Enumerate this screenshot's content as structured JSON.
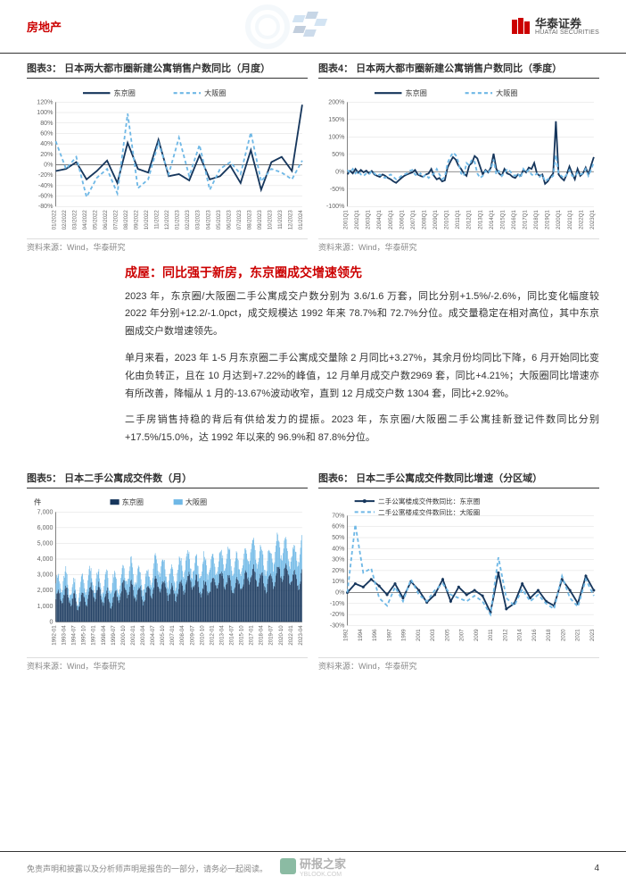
{
  "header": {
    "category": "房地产",
    "brand_cn": "华泰证券",
    "brand_en": "HUATAI SECURITIES"
  },
  "chart3": {
    "type": "line",
    "title": "图表3： 日本两大都市圈新建公寓销售户数同比（月度）",
    "source": "资料来源：Wind，华泰研究",
    "legend": [
      "东京圈",
      "大阪圈"
    ],
    "colors": {
      "s1": "#16365c",
      "s2": "#6fb8e6",
      "grid": "#dddddd",
      "axis": "#666666",
      "bg": "#ffffff"
    },
    "ylim": [
      -80,
      120
    ],
    "ytick_step": 20,
    "x_labels": [
      "01/2022",
      "02/2022",
      "03/2022",
      "04/2022",
      "05/2022",
      "06/2022",
      "07/2022",
      "08/2022",
      "09/2022",
      "10/2022",
      "11/2022",
      "12/2022",
      "01/2023",
      "02/2023",
      "03/2023",
      "04/2023",
      "05/2023",
      "06/2023",
      "07/2023",
      "08/2023",
      "09/2023",
      "10/2023",
      "11/2023",
      "12/2023",
      "01/2024"
    ],
    "s1_values": [
      -12,
      -8,
      5,
      -28,
      -12,
      8,
      -35,
      42,
      -8,
      -15,
      48,
      -22,
      -18,
      -30,
      18,
      -28,
      -22,
      -2,
      -35,
      28,
      -48,
      5,
      15,
      -12,
      115
    ],
    "s2_values": [
      45,
      -8,
      15,
      -62,
      -25,
      -8,
      -55,
      98,
      -45,
      -28,
      42,
      -18,
      52,
      -22,
      38,
      -48,
      -8,
      5,
      -18,
      62,
      -32,
      -8,
      -15,
      -28,
      8
    ]
  },
  "chart4": {
    "type": "line",
    "title": "图表4： 日本两大都市圈新建公寓销售户数同比（季度）",
    "source": "资料来源：Wind，华泰研究",
    "legend": [
      "东京圈",
      "大阪圈"
    ],
    "colors": {
      "s1": "#16365c",
      "s2": "#6fb8e6"
    },
    "ylim": [
      -100,
      200
    ],
    "ytick_step": 50,
    "x_labels": [
      "2001Q1",
      "2002Q1",
      "2003Q1",
      "2004Q1",
      "2005Q1",
      "2006Q1",
      "2007Q1",
      "2008Q1",
      "2009Q1",
      "2010Q1",
      "2011Q1",
      "2012Q1",
      "2013Q1",
      "2014Q1",
      "2015Q1",
      "2016Q1",
      "2017Q1",
      "2018Q1",
      "2019Q1",
      "2020Q1",
      "2021Q1",
      "2022Q1",
      "2023Q1"
    ],
    "s1_dense": [
      -8,
      2,
      -5,
      8,
      -3,
      5,
      -2,
      3,
      -5,
      2,
      -8,
      -12,
      -15,
      -8,
      -12,
      -18,
      -22,
      -28,
      -32,
      -25,
      -18,
      -12,
      -8,
      -5,
      -2,
      5,
      -8,
      -12,
      -15,
      -8,
      -5,
      8,
      -12,
      -22,
      -18,
      -28,
      -25,
      12,
      28,
      42,
      35,
      18,
      8,
      -5,
      -12,
      18,
      25,
      45,
      38,
      15,
      -8,
      5,
      -2,
      12,
      52,
      8,
      -5,
      -12,
      8,
      -5,
      -8,
      -15,
      -18,
      -8,
      -12,
      5,
      -2,
      12,
      8,
      25,
      -5,
      -12,
      -8,
      -35,
      -28,
      -15,
      -5,
      145,
      -8,
      -18,
      -25,
      -8,
      15,
      -5,
      -22,
      8,
      -12,
      -5,
      12,
      -8,
      18,
      42
    ],
    "s2_dense": [
      5,
      -3,
      8,
      -5,
      2,
      -8,
      -12,
      -5,
      -8,
      2,
      -5,
      -12,
      -8,
      -15,
      -18,
      -12,
      -8,
      -15,
      -22,
      -18,
      -12,
      -8,
      -5,
      2,
      5,
      -8,
      -12,
      -5,
      -15,
      -8,
      -18,
      -12,
      -5,
      8,
      -8,
      -22,
      -15,
      25,
      42,
      55,
      48,
      28,
      -5,
      -12,
      25,
      18,
      35,
      28,
      -5,
      -18,
      -12,
      2,
      -5,
      8,
      35,
      -8,
      2,
      -12,
      -5,
      8,
      2,
      -8,
      -12,
      -5,
      -18,
      8,
      -2,
      5,
      -8,
      -12,
      -5,
      -15,
      -8,
      -28,
      -22,
      -18,
      -12,
      48,
      -5,
      -12,
      -18,
      -8,
      5,
      -12,
      -15,
      -2,
      -8,
      -5,
      8,
      -12,
      5,
      28
    ]
  },
  "section": {
    "title": "成屋：同比强于新房，东京圈成交增速领先",
    "p1": "2023 年，东京圈/大阪圈二手公寓成交户数分别为 3.6/1.6 万套，同比分别+1.5%/-2.6%，同比变化幅度较 2022 年分别+12.2/-1.0pct，成交规模达 1992 年来 78.7%和 72.7%分位。成交量稳定在相对高位，其中东京圈成交户数增速领先。",
    "p2": "单月来看，2023 年 1-5 月东京圈二手公寓成交量除 2 月同比+3.27%，其余月份均同比下降，6 月开始同比变化由负转正，且在 10 月达到+7.22%的峰值，12 月单月成交户数2969 套，同比+4.21%；大阪圈同比增速亦有所改善，降幅从 1 月的-13.67%波动收窄，直到 12 月成交户数 1304 套，同比+2.92%。",
    "p3": "二手房销售持稳的背后有供给发力的提振。2023 年，东京圈/大阪圈二手公寓挂新登记件数同比分别+17.5%/15.0%，达 1992 年以来的 96.9%和 87.8%分位。"
  },
  "chart5": {
    "type": "bar",
    "title": "图表5： 日本二手公寓成交件数（月）",
    "source": "资料来源：Wind，华泰研究",
    "legend": [
      "东京圈",
      "大阪圈"
    ],
    "colors": {
      "s1": "#16365c",
      "s2": "#6fb8e6"
    },
    "ylabel": "件",
    "ylim": [
      0,
      7000
    ],
    "ytick_step": 1000,
    "x_labels": [
      "1992-01",
      "1993-04",
      "1994-07",
      "1995-10",
      "1997-01",
      "1998-04",
      "1999-07",
      "2000-10",
      "2002-01",
      "2003-04",
      "2004-07",
      "2005-10",
      "2007-01",
      "2008-04",
      "2009-07",
      "2010-10",
      "2012-01",
      "2013-04",
      "2014-07",
      "2015-10",
      "2017-01",
      "2018-04",
      "2019-07",
      "2020-10",
      "2022-01",
      "2023-04"
    ]
  },
  "chart6": {
    "type": "line",
    "title": "图表6： 日本二手公寓成交件数同比增速（分区域）",
    "source": "资料来源：Wind，华泰研究",
    "legend": [
      "二手公寓楼成交件数同比：东京圈",
      "二手公寓楼成交件数同比：大阪圈"
    ],
    "colors": {
      "s1": "#16365c",
      "s2": "#6fb8e6"
    },
    "ylim": [
      -30,
      70
    ],
    "ytick_step": 10,
    "x_labels": [
      "1992",
      "1994",
      "1996",
      "1997",
      "1999",
      "2001",
      "2003",
      "2005",
      "2007",
      "2009",
      "2011",
      "2012",
      "2014",
      "2016",
      "2018",
      "2020",
      "2021",
      "2023"
    ],
    "s1_values": [
      0,
      8,
      5,
      12,
      6,
      -2,
      8,
      -5,
      10,
      2,
      -9,
      -2,
      12,
      -8,
      5,
      -2,
      2,
      -3,
      -18,
      18,
      -15,
      -10,
      8,
      -5,
      2,
      -8,
      -12,
      12,
      2,
      -10,
      15,
      2
    ],
    "s2_values": [
      0,
      62,
      18,
      22,
      -5,
      -12,
      5,
      -8,
      12,
      -2,
      -8,
      2,
      8,
      -2,
      -5,
      -8,
      -3,
      -8,
      -20,
      32,
      -5,
      -12,
      3,
      -8,
      -2,
      -10,
      -15,
      15,
      -5,
      -13,
      12,
      -3
    ]
  },
  "footer": {
    "disclaimer": "免责声明和披露以及分析师声明是报告的一部分，请务必一起阅读。",
    "page": "4",
    "watermark": "研报之家",
    "watermark_url": "YBLOOK.COM"
  }
}
